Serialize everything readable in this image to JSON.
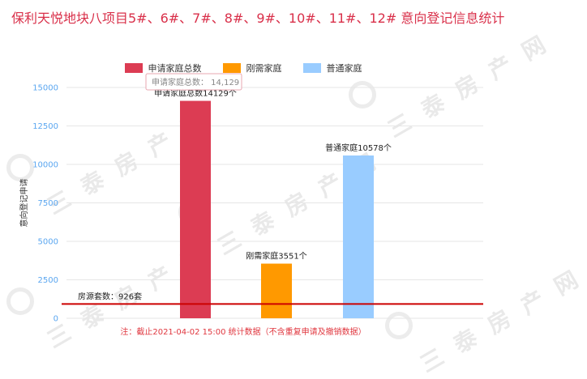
{
  "title": "保利天悦地块八项目5#、6#、7#、8#、9#、10#、11#、12# 意向登记信息统计",
  "watermark_text": "三泰房产网",
  "chart_data": {
    "type": "bar",
    "categories": [
      "申请家庭总数",
      "刚需家庭",
      "普通家庭"
    ],
    "values": [
      14129,
      3551,
      10578
    ],
    "colors": [
      "#dc3c53",
      "#ff9900",
      "#99ccff"
    ],
    "bar_labels": [
      "申请家庭总数14129个",
      "刚需家庭3551个",
      "普通家庭10578个"
    ],
    "ylabel": "意向登记申请",
    "ylim": [
      0,
      15000
    ],
    "yticks": [
      0,
      2500,
      5000,
      7500,
      10000,
      12500,
      15000
    ],
    "grid": true,
    "legend_position": "top-center",
    "reference_line": {
      "value": 926,
      "label": "房源套数：926套",
      "color": "#cc0000"
    },
    "tooltip": {
      "label": "申请家庭总数",
      "value": "14,129"
    },
    "note": "注：截止2021-04-02 15:00 统计数据（不含重复申请及撤销数据）"
  }
}
